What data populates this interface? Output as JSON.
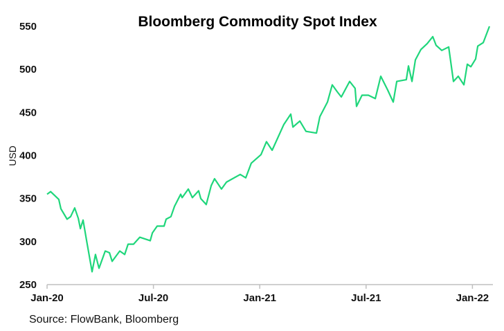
{
  "chart_data": {
    "type": "line",
    "title": "Bloomberg Commodity Spot Index",
    "xlabel": "",
    "ylabel": "USD",
    "ylim": [
      250,
      550
    ],
    "yticks": [
      "250",
      "300",
      "350",
      "400",
      "450",
      "500",
      "550"
    ],
    "xticks": [
      {
        "month": 0,
        "label": "Jan-20"
      },
      {
        "month": 6,
        "label": "Jul-20"
      },
      {
        "month": 12,
        "label": "Jan-21"
      },
      {
        "month": 18,
        "label": "Jul-21"
      },
      {
        "month": 24,
        "label": "Jan-22"
      }
    ],
    "x_unit": "months since Jan-20",
    "grid": false,
    "series": [
      {
        "name": "Bloomberg Commodity Spot Index",
        "color": "#1fd67b",
        "points": [
          [
            0,
            355
          ],
          [
            0.2,
            358
          ],
          [
            0.66,
            349
          ],
          [
            0.78,
            338
          ],
          [
            1.13,
            326
          ],
          [
            1.33,
            329
          ],
          [
            1.56,
            339
          ],
          [
            1.76,
            327
          ],
          [
            1.88,
            315
          ],
          [
            2.03,
            325
          ],
          [
            2.23,
            301
          ],
          [
            2.54,
            265
          ],
          [
            2.73,
            285
          ],
          [
            2.93,
            269
          ],
          [
            3.28,
            289
          ],
          [
            3.52,
            287
          ],
          [
            3.67,
            277
          ],
          [
            4.1,
            289
          ],
          [
            4.38,
            285
          ],
          [
            4.57,
            297
          ],
          [
            4.88,
            297
          ],
          [
            5.23,
            305
          ],
          [
            5.82,
            301
          ],
          [
            5.94,
            310
          ],
          [
            6.21,
            318
          ],
          [
            6.6,
            318
          ],
          [
            6.72,
            326
          ],
          [
            6.99,
            329
          ],
          [
            7.19,
            341
          ],
          [
            7.54,
            355
          ],
          [
            7.62,
            351
          ],
          [
            7.97,
            361
          ],
          [
            8.2,
            351
          ],
          [
            8.55,
            359
          ],
          [
            8.67,
            350
          ],
          [
            8.98,
            343
          ],
          [
            9.26,
            365
          ],
          [
            9.45,
            373
          ],
          [
            9.84,
            361
          ],
          [
            10.12,
            369
          ],
          [
            10.9,
            378
          ],
          [
            11.21,
            374
          ],
          [
            11.52,
            391
          ],
          [
            12.07,
            401
          ],
          [
            12.38,
            416
          ],
          [
            12.7,
            406
          ],
          [
            13.36,
            436
          ],
          [
            13.75,
            448
          ],
          [
            13.87,
            433
          ],
          [
            14.26,
            440
          ],
          [
            14.61,
            428
          ],
          [
            15.2,
            426
          ],
          [
            15.39,
            445
          ],
          [
            15.82,
            462
          ],
          [
            16.09,
            482
          ],
          [
            16.37,
            474
          ],
          [
            16.6,
            468
          ],
          [
            17.07,
            486
          ],
          [
            17.38,
            478
          ],
          [
            17.46,
            457
          ],
          [
            17.77,
            470
          ],
          [
            18.13,
            470
          ],
          [
            18.52,
            466
          ],
          [
            18.83,
            492
          ],
          [
            19.22,
            476
          ],
          [
            19.53,
            462
          ],
          [
            19.73,
            486
          ],
          [
            20.27,
            488
          ],
          [
            20.39,
            504
          ],
          [
            20.59,
            486
          ],
          [
            20.78,
            511
          ],
          [
            21.09,
            523
          ],
          [
            21.45,
            530
          ],
          [
            21.76,
            538
          ],
          [
            21.95,
            528
          ],
          [
            22.27,
            522
          ],
          [
            22.66,
            526
          ],
          [
            22.93,
            486
          ],
          [
            23.2,
            492
          ],
          [
            23.52,
            482
          ],
          [
            23.71,
            506
          ],
          [
            23.91,
            503
          ],
          [
            24.18,
            512
          ],
          [
            24.3,
            527
          ],
          [
            24.61,
            531
          ],
          [
            24.96,
            550
          ]
        ]
      }
    ],
    "source": "Source: FlowBank, Bloomberg"
  }
}
